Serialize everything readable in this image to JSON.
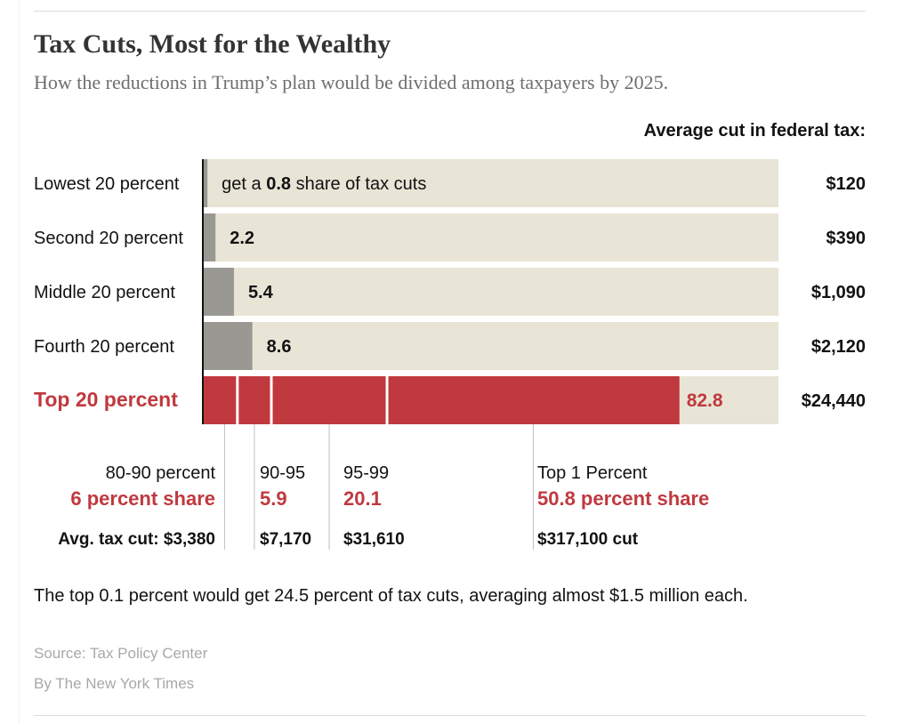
{
  "title": "Tax Cuts, Most for the Wealthy",
  "subtitle": "How the reductions in Trump’s plan would be divided among taxpayers by 2025.",
  "column_header": "Average cut in federal tax:",
  "note": "The top 0.1 percent would get 24.5 percent of tax cuts, averaging almost $1.5 million each.",
  "source": "Source: Tax Policy Center",
  "credit": "By The New York Times",
  "colors": {
    "background_bar": "#e8e4d6",
    "share_bar": "#999893",
    "top_bar": "#c0393f",
    "top_text": "#c0393f"
  },
  "chart_data": {
    "type": "bar",
    "orientation": "horizontal",
    "xlim": [
      0,
      100
    ],
    "categories": [
      "Lowest 20 percent",
      "Second 20 percent",
      "Middle 20 percent",
      "Fourth 20 percent",
      "Top 20 percent"
    ],
    "values": [
      0.8,
      2.2,
      5.4,
      8.6,
      82.8
    ],
    "value_labels": [
      "0.8",
      "2.2",
      "5.4",
      "8.6",
      "82.8"
    ],
    "first_label_prefix": "get a ",
    "first_label_suffix": " share of tax cuts",
    "avg_cut": [
      "$120",
      "$390",
      "$1,090",
      "$2,120",
      "$24,440"
    ],
    "highlight_index": 4,
    "top_breakdown": [
      {
        "group": "80-90 percent",
        "share": 6.0,
        "share_label": "6 percent share",
        "cut": "Avg. tax cut: $3,380"
      },
      {
        "group": "90-95",
        "share": 5.9,
        "share_label": "5.9",
        "cut": "$7,170"
      },
      {
        "group": "95-99",
        "share": 20.1,
        "share_label": "20.1",
        "cut": "$31,610"
      },
      {
        "group": "Top 1 Percent",
        "share": 50.8,
        "share_label": "50.8 percent share",
        "cut": "$317,100 cut"
      }
    ]
  }
}
